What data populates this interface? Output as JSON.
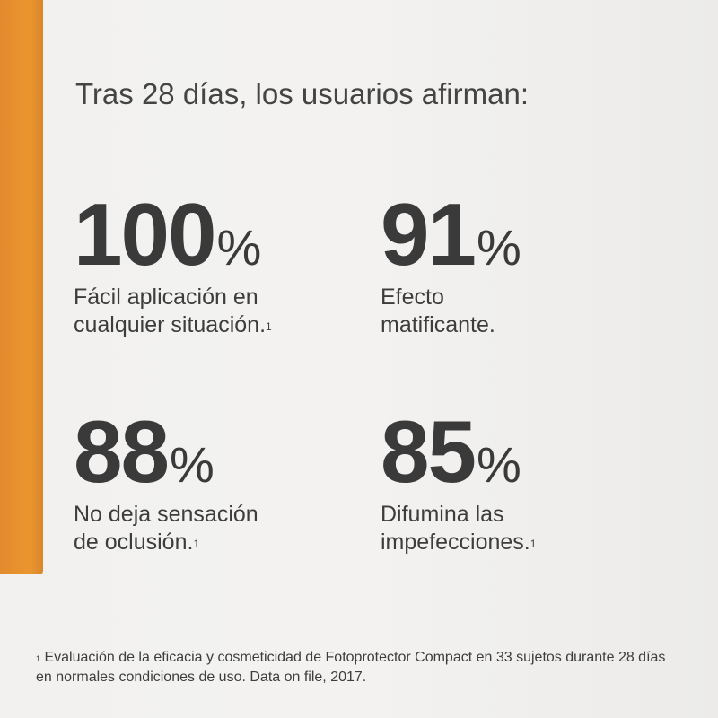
{
  "headline": "Tras 28 días, los usuarios afirman:",
  "stats": [
    {
      "value": "100",
      "unit": "%",
      "line1": "Fácil aplicación en",
      "line2": "cualquier situación.",
      "note": "1"
    },
    {
      "value": "91",
      "unit": "%",
      "line1": "Efecto",
      "line2": "matificante.",
      "note": ""
    },
    {
      "value": "88",
      "unit": "%",
      "line1": "No deja sensación",
      "line2": "de oclusión.",
      "note": "1"
    },
    {
      "value": "85",
      "unit": "%",
      "line1": "Difumina las",
      "line2": "impefecciones.",
      "note": "1"
    }
  ],
  "footnote": {
    "marker": "1",
    "text": "Evaluación de la eficacia y cosmeticidad de Fotoprotector Compact en 33 sujetos durante 28 días en normales condiciones de uso. Data on file, 2017."
  },
  "colors": {
    "accent": "#e38a2e",
    "text": "#3b3b3b",
    "background": "#f2f1ef"
  }
}
